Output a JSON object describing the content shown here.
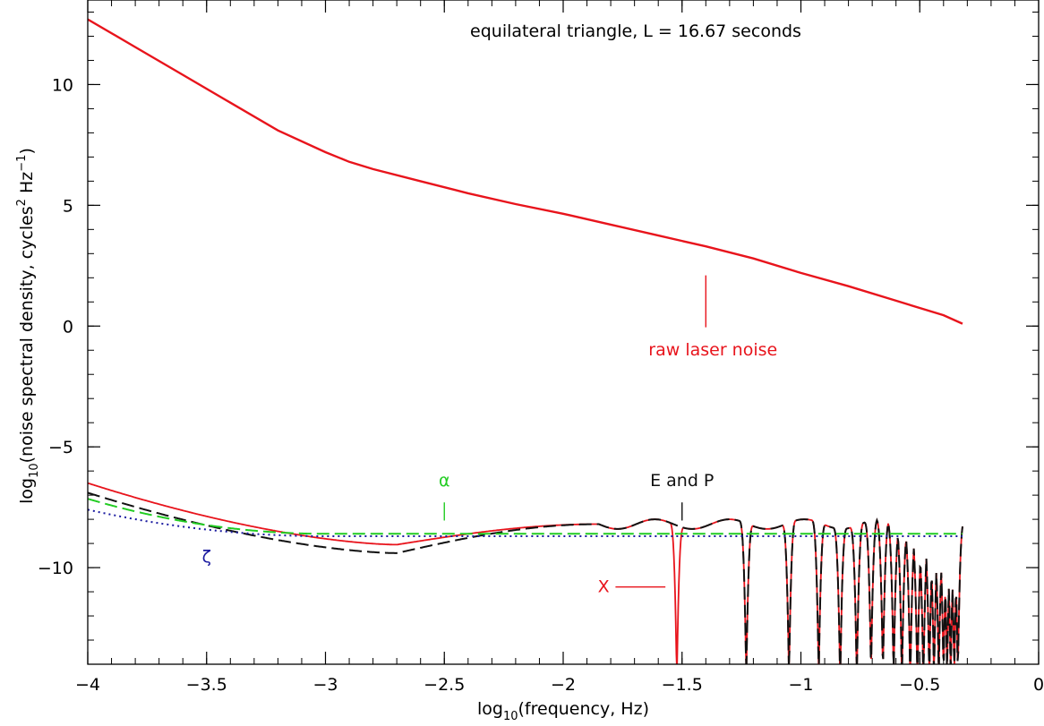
{
  "chart_data": {
    "type": "line",
    "title": "equilateral triangle, L = 16.67 seconds",
    "xlabel_main": "log",
    "xlabel_sub": "10",
    "xlabel_rest": "(frequency, Hz)",
    "ylabel_main": "log",
    "ylabel_sub": "10",
    "ylabel_mid": "(noise spectral density, cycles",
    "ylabel_sup": "2",
    "ylabel_mid2": " Hz",
    "ylabel_sup2": "−1",
    "ylabel_end": ")",
    "xlim": [
      -4,
      0
    ],
    "ylim": [
      -14,
      13.5
    ],
    "x_ticks": [
      -4,
      -3.5,
      -3,
      -2.5,
      -2,
      -1.5,
      -1,
      -0.5,
      0
    ],
    "x_tick_labels": [
      "−4",
      "−3.5",
      "−3",
      "−2.5",
      "−2",
      "−1.5",
      "−1",
      "−0.5",
      "0"
    ],
    "y_ticks": [
      -10,
      -5,
      0,
      5,
      10
    ],
    "y_tick_labels": [
      "−10",
      "−5",
      "0",
      "5",
      "10"
    ],
    "raw_laser_noise": {
      "x": [
        -4,
        -3.8,
        -3.6,
        -3.4,
        -3.2,
        -3.0,
        -2.9,
        -2.8,
        -2.6,
        -2.4,
        -2.2,
        -2.0,
        -1.8,
        -1.6,
        -1.4,
        -1.2,
        -1.0,
        -0.8,
        -0.6,
        -0.4,
        -0.32
      ],
      "y": [
        12.7,
        11.55,
        10.4,
        9.25,
        8.1,
        7.2,
        6.8,
        6.5,
        6.0,
        5.5,
        5.05,
        4.65,
        4.2,
        3.75,
        3.3,
        2.8,
        2.2,
        1.65,
        1.05,
        0.45,
        0.1
      ],
      "color": "#e8141c"
    },
    "combinations_x_range": [
      -4,
      -0.32
    ],
    "series": [
      {
        "label": "X",
        "color": "#e8141c",
        "style": "solid",
        "start": -6.5,
        "floor": -9.05,
        "null_spacing": 0.03
      },
      {
        "label": "E and P",
        "color": "#111111",
        "style": "dashed",
        "start": -6.9,
        "floor": -9.4,
        "null_spacing": 0.03
      },
      {
        "label": "α",
        "color": "#22cc22",
        "style": "dashed",
        "start": -7.15,
        "floor": -8.6
      },
      {
        "label": "ζ",
        "color": "#1a1aa0",
        "style": "dotted",
        "start": -7.6,
        "floor": -8.7
      }
    ],
    "annotations": [
      {
        "text": "raw laser noise",
        "color": "#e8141c",
        "x": -1.37,
        "y": -1.0
      },
      {
        "text": "α",
        "color": "#22cc22",
        "x": -2.5,
        "y": -6.4
      },
      {
        "text": "E and P",
        "color": "#111111",
        "x": -1.5,
        "y": -6.4
      },
      {
        "text": "ζ",
        "color": "#1a1aa0",
        "x": -3.5,
        "y": -9.55
      },
      {
        "text": "X",
        "color": "#e8141c",
        "x": -1.83,
        "y": -10.8
      }
    ]
  }
}
